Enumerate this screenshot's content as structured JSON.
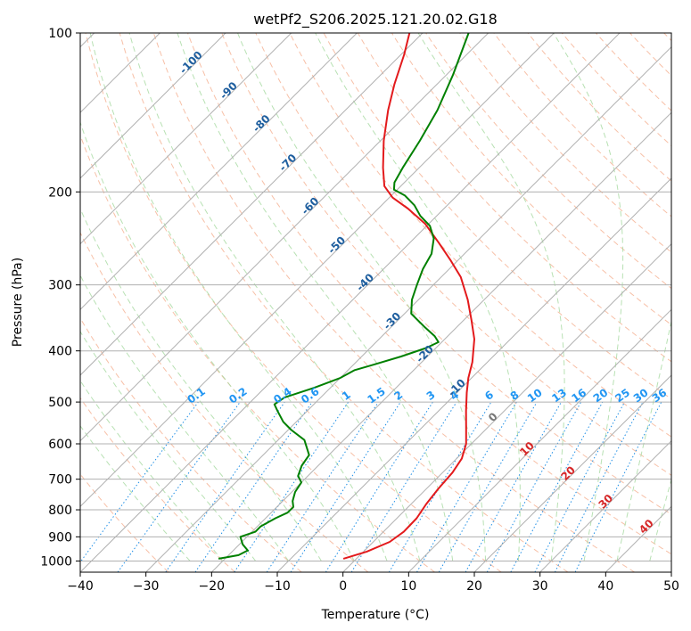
{
  "chart_data": {
    "type": "line",
    "title": "wetPf2_S206.2025.121.20.02.G18",
    "xlabel": "Temperature (°C)",
    "ylabel": "Pressure (hPa)",
    "xlim": [
      -40,
      50
    ],
    "ylim": [
      1050,
      100
    ],
    "y_log_scale": true,
    "skew_t": true,
    "grid": true,
    "x_ticks": [
      -40,
      -30,
      -20,
      -10,
      0,
      10,
      20,
      30,
      40,
      50
    ],
    "x_tick_labels": [
      "−40",
      "−30",
      "−20",
      "−10",
      "0",
      "10",
      "20",
      "30",
      "40",
      "50"
    ],
    "y_ticks": [
      100,
      200,
      300,
      400,
      500,
      600,
      700,
      800,
      900,
      1000
    ],
    "y_tick_labels": [
      "100",
      "200",
      "300",
      "400",
      "500",
      "600",
      "700",
      "800",
      "900",
      "1000"
    ],
    "series": [
      {
        "role": "temperature",
        "color": "#e31a1c",
        "points": [
          {
            "p": 990,
            "t": -2.0
          },
          {
            "p": 960,
            "t": 0.5
          },
          {
            "p": 920,
            "t": 2.5
          },
          {
            "p": 880,
            "t": 3.1
          },
          {
            "p": 830,
            "t": 3.0
          },
          {
            "p": 780,
            "t": 2.3
          },
          {
            "p": 730,
            "t": 1.8
          },
          {
            "p": 680,
            "t": 1.5
          },
          {
            "p": 640,
            "t": 0.8
          },
          {
            "p": 600,
            "t": -0.8
          },
          {
            "p": 560,
            "t": -3.2
          },
          {
            "p": 520,
            "t": -5.8
          },
          {
            "p": 480,
            "t": -8.5
          },
          {
            "p": 450,
            "t": -10.5
          },
          {
            "p": 420,
            "t": -12.3
          },
          {
            "p": 380,
            "t": -15.5
          },
          {
            "p": 350,
            "t": -18.8
          },
          {
            "p": 320,
            "t": -22.5
          },
          {
            "p": 290,
            "t": -27.0
          },
          {
            "p": 270,
            "t": -31.0
          },
          {
            "p": 250,
            "t": -35.5
          },
          {
            "p": 230,
            "t": -40.5
          },
          {
            "p": 215,
            "t": -45.5
          },
          {
            "p": 205,
            "t": -49.5
          },
          {
            "p": 195,
            "t": -52.5
          },
          {
            "p": 180,
            "t": -55.5
          },
          {
            "p": 160,
            "t": -59.5
          },
          {
            "p": 140,
            "t": -63.5
          },
          {
            "p": 125,
            "t": -66.5
          },
          {
            "p": 110,
            "t": -69.5
          },
          {
            "p": 100,
            "t": -72.0
          }
        ]
      },
      {
        "role": "dewpoint",
        "color": "#008000",
        "points": [
          {
            "p": 990,
            "t": -21.0
          },
          {
            "p": 975,
            "t": -18.5
          },
          {
            "p": 955,
            "t": -17.8
          },
          {
            "p": 930,
            "t": -19.5
          },
          {
            "p": 900,
            "t": -21.0
          },
          {
            "p": 880,
            "t": -19.5
          },
          {
            "p": 860,
            "t": -19.5
          },
          {
            "p": 830,
            "t": -18.5
          },
          {
            "p": 810,
            "t": -17.5
          },
          {
            "p": 790,
            "t": -17.5
          },
          {
            "p": 770,
            "t": -18.5
          },
          {
            "p": 740,
            "t": -19.5
          },
          {
            "p": 710,
            "t": -20.0
          },
          {
            "p": 690,
            "t": -21.5
          },
          {
            "p": 660,
            "t": -22.5
          },
          {
            "p": 630,
            "t": -23.0
          },
          {
            "p": 590,
            "t": -26.0
          },
          {
            "p": 565,
            "t": -29.5
          },
          {
            "p": 545,
            "t": -32.0
          },
          {
            "p": 520,
            "t": -34.5
          },
          {
            "p": 505,
            "t": -36.0
          },
          {
            "p": 490,
            "t": -35.5
          },
          {
            "p": 470,
            "t": -32.5
          },
          {
            "p": 450,
            "t": -30.0
          },
          {
            "p": 435,
            "t": -29.0
          },
          {
            "p": 425,
            "t": -27.0
          },
          {
            "p": 410,
            "t": -24.0
          },
          {
            "p": 395,
            "t": -21.5
          },
          {
            "p": 385,
            "t": -20.5
          },
          {
            "p": 375,
            "t": -22.0
          },
          {
            "p": 360,
            "t": -25.0
          },
          {
            "p": 340,
            "t": -29.0
          },
          {
            "p": 320,
            "t": -31.0
          },
          {
            "p": 300,
            "t": -32.5
          },
          {
            "p": 280,
            "t": -34.0
          },
          {
            "p": 262,
            "t": -35.0
          },
          {
            "p": 245,
            "t": -37.0
          },
          {
            "p": 232,
            "t": -39.5
          },
          {
            "p": 222,
            "t": -42.5
          },
          {
            "p": 212,
            "t": -45.0
          },
          {
            "p": 203,
            "t": -48.0
          },
          {
            "p": 198,
            "t": -50.5
          },
          {
            "p": 192,
            "t": -51.5
          },
          {
            "p": 180,
            "t": -52.5
          },
          {
            "p": 160,
            "t": -54.0
          },
          {
            "p": 140,
            "t": -56.0
          },
          {
            "p": 120,
            "t": -59.0
          },
          {
            "p": 100,
            "t": -63.0
          }
        ]
      }
    ],
    "dry_adiabat_labels": [
      "-100",
      "-90",
      "-80",
      "-70",
      "-60",
      "-50",
      "-40",
      "-30",
      "-20",
      "-10",
      "0",
      "10",
      "20",
      "30",
      "40"
    ],
    "mixing_ratio_labels": [
      "0.1",
      "0.2",
      "0.4",
      "0.6",
      "1",
      "1.5",
      "2",
      "3",
      "4",
      "6",
      "8",
      "10",
      "13",
      "16",
      "20",
      "25",
      "30",
      "36"
    ],
    "colors": {
      "isobar_isotherm_grid": "#b0b0b0",
      "dry_adiabat": "#f4a582",
      "moist_adiabat": "#a6d9a0",
      "mixing_ratio": "#1f8fe6",
      "label_dark_blue": "#1f5f9f",
      "label_light_blue": "#2196f3",
      "label_red": "#d62728",
      "label_gray": "#777777"
    }
  }
}
